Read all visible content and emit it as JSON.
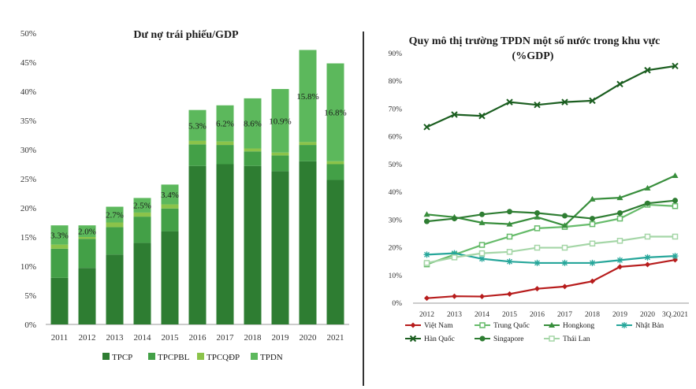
{
  "chart_data": [
    {
      "type": "bar",
      "stacked": true,
      "title": "Dư nợ trái phiếu/GDP",
      "categories": [
        "2011",
        "2012",
        "2013",
        "2014",
        "2015",
        "2016",
        "2017",
        "2018",
        "2019",
        "2020",
        "2021"
      ],
      "ylim": [
        0,
        50
      ],
      "yticks": [
        "0%",
        "5%",
        "10%",
        "15%",
        "20%",
        "25%",
        "30%",
        "35%",
        "40%",
        "45%",
        "50%"
      ],
      "legend_position": "bottom",
      "series": [
        {
          "name": "TPCP",
          "color": "#2e7d32",
          "values": [
            8.0,
            9.7,
            12.0,
            14.0,
            16.0,
            27.2,
            27.5,
            27.2,
            26.3,
            28.0,
            24.8
          ]
        },
        {
          "name": "TPCPBL",
          "color": "#43a047",
          "values": [
            5.0,
            5.0,
            4.7,
            4.5,
            3.9,
            3.7,
            3.3,
            2.5,
            2.7,
            2.8,
            2.7
          ]
        },
        {
          "name": "TPCQĐP",
          "color": "#8bc34a",
          "values": [
            0.7,
            0.3,
            0.8,
            0.7,
            0.7,
            0.6,
            0.6,
            0.5,
            0.5,
            0.5,
            0.5
          ]
        },
        {
          "name": "TPDN",
          "color": "#5cb85c",
          "values": [
            3.3,
            2.0,
            2.7,
            2.5,
            3.4,
            5.3,
            6.2,
            8.6,
            10.9,
            15.8,
            16.8
          ]
        }
      ],
      "data_labels": [
        "3.3%",
        "2.0%",
        "2.7%",
        "2.5%",
        "3.4%",
        "5.3%",
        "6.2%",
        "8.6%",
        "10.9%",
        "15.8%",
        "16.8%"
      ]
    },
    {
      "type": "line",
      "title": "Quy mô thị trường TPDN một số nước trong khu vực",
      "subtitle": "(%GDP)",
      "categories": [
        "2012",
        "2013",
        "2014",
        "2015",
        "2016",
        "2017",
        "2018",
        "2019",
        "2020",
        "3Q.2021"
      ],
      "ylim": [
        0,
        90
      ],
      "yticks": [
        "0%",
        "10%",
        "20%",
        "30%",
        "40%",
        "50%",
        "60%",
        "70%",
        "80%",
        "90%"
      ],
      "legend_position": "bottom",
      "series": [
        {
          "name": "Việt Nam",
          "color": "#b71c1c",
          "marker": "diamond",
          "values": [
            1.8,
            2.5,
            2.4,
            3.3,
            5.2,
            6.0,
            7.9,
            13.1,
            13.9,
            15.6
          ]
        },
        {
          "name": "Trung Quốc",
          "color": "#66bb6a",
          "marker": "square",
          "values": [
            14.0,
            17.5,
            21.0,
            24.0,
            27.0,
            27.5,
            28.5,
            30.5,
            35.5,
            35.0
          ]
        },
        {
          "name": "Hongkong",
          "color": "#388e3c",
          "marker": "triangle",
          "values": [
            32.0,
            31.0,
            29.0,
            28.5,
            31.0,
            28.0,
            37.5,
            38.0,
            41.5,
            46.0
          ]
        },
        {
          "name": "Nhật Bản",
          "color": "#26a69a",
          "marker": "star",
          "values": [
            17.5,
            18.0,
            16.0,
            15.0,
            14.5,
            14.5,
            14.5,
            15.5,
            16.5,
            17.0
          ]
        },
        {
          "name": "Hàn Quốc",
          "color": "#1b5e20",
          "marker": "x",
          "values": [
            63.5,
            68.0,
            67.5,
            72.5,
            71.5,
            72.5,
            73.0,
            79.0,
            84.0,
            85.5
          ]
        },
        {
          "name": "Singapore",
          "color": "#2e7d32",
          "marker": "circle",
          "values": [
            29.5,
            30.5,
            32.0,
            33.0,
            32.5,
            31.5,
            30.5,
            32.5,
            36.0,
            37.0
          ]
        },
        {
          "name": "Thái Lan",
          "color": "#a5d6a7",
          "marker": "square",
          "values": [
            14.5,
            16.5,
            18.0,
            18.5,
            20.0,
            20.0,
            21.5,
            22.5,
            24.0,
            24.0
          ]
        }
      ]
    }
  ]
}
